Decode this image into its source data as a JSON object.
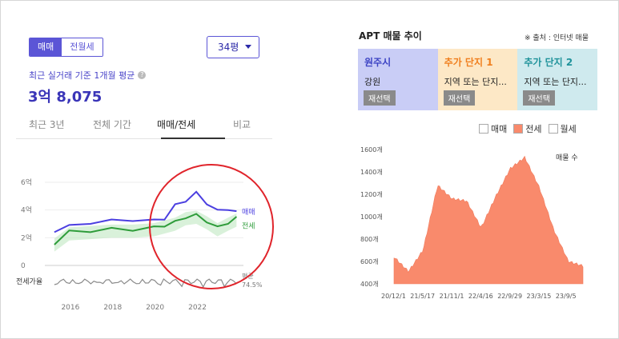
{
  "left": {
    "segments": [
      {
        "label": "매매",
        "active": true
      },
      {
        "label": "전월세",
        "active": false
      }
    ],
    "size_select": "34평",
    "subtitle": "최근 실거래 기준 1개월 평균",
    "price": "3억 8,075",
    "tabs": [
      {
        "label": "최근 3년",
        "active": false
      },
      {
        "label": "전체 기간",
        "active": false
      },
      {
        "label": "매매/전세",
        "active": true
      },
      {
        "label": "비교",
        "active": false
      }
    ],
    "chart": {
      "y_ticks": [
        "6억",
        "4억",
        "2억",
        "0"
      ],
      "x_ticks": [
        "2016",
        "2018",
        "2020",
        "2022"
      ],
      "series_labels": {
        "sale": "매매",
        "jeonse": "전세"
      },
      "ratio_label": "전세가율",
      "ratio_avg_label": "평균",
      "ratio_avg_value": "74.5%",
      "colors": {
        "sale": "#4b3fe0",
        "jeonse": "#2e9c3a",
        "ratio": "#8a8a8a"
      }
    }
  },
  "right": {
    "title": "APT 매물 추이",
    "source": "※ 출처 : 인터넷 매물",
    "cards": [
      {
        "title": "원주시",
        "sub": "강원",
        "button": "재선택"
      },
      {
        "title": "추가 단지 1",
        "sub": "지역 또는 단지...",
        "button": "재선택"
      },
      {
        "title": "추가 단지 2",
        "sub": "지역 또는 단지...",
        "button": "재선택"
      }
    ],
    "legend": [
      {
        "label": "매매",
        "checked": false
      },
      {
        "label": "전세",
        "checked": true
      },
      {
        "label": "월세",
        "checked": false
      }
    ]
  },
  "chart_data": [
    {
      "type": "line",
      "x": [
        2015.3,
        2016,
        2017,
        2018,
        2019,
        2020,
        2020.5,
        2021,
        2021.5,
        2022,
        2022.5,
        2023,
        2023.5,
        2023.9
      ],
      "series": [
        {
          "name": "매매",
          "values": [
            2.5,
            2.8,
            3.1,
            3.2,
            3.3,
            3.2,
            3.4,
            4.3,
            4.7,
            5.2,
            4.5,
            3.9,
            4.1,
            3.8
          ]
        },
        {
          "name": "전세",
          "values": [
            1.6,
            2.4,
            2.5,
            2.6,
            2.6,
            2.7,
            2.9,
            3.1,
            3.5,
            3.6,
            3.2,
            2.7,
            3.1,
            3.4
          ]
        }
      ],
      "ylim": [
        0,
        6
      ],
      "y_ticks": [
        "6억",
        "4억",
        "2억",
        "0"
      ],
      "x_ticks": [
        "2016",
        "2018",
        "2020",
        "2022"
      ]
    },
    {
      "type": "area",
      "x": [
        "20/12/1",
        "21/2/1",
        "21/5/17",
        "21/8/1",
        "21/11/1",
        "22/2/1",
        "22/4/16",
        "22/7/1",
        "22/9/29",
        "22/12/1",
        "23/3/15",
        "23/6/1",
        "23/9/5",
        "23/11/1"
      ],
      "series": [
        {
          "name": "전세",
          "values": [
            640,
            510,
            700,
            1280,
            1160,
            1140,
            900,
            1180,
            1430,
            1530,
            1260,
            880,
            600,
            560
          ]
        }
      ],
      "ylim": [
        400,
        1600
      ],
      "y_ticks": [
        "1600개",
        "1400개",
        "1200개",
        "1000개",
        "800개",
        "600개",
        "400개"
      ],
      "x_ticks": [
        "20/12/1",
        "21/5/17",
        "21/11/1",
        "22/4/16",
        "22/9/29",
        "23/3/15",
        "23/9/5"
      ],
      "ylabel": "매물 수"
    }
  ]
}
